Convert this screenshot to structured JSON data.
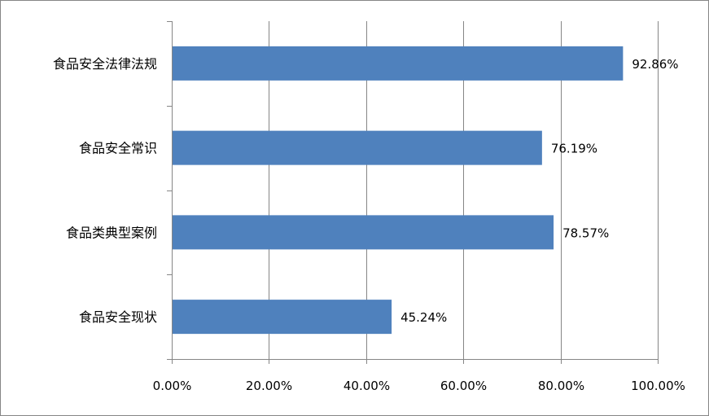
{
  "chart_data": {
    "type": "bar",
    "orientation": "horizontal",
    "categories": [
      "食品安全法律法规",
      "食品安全常识",
      "食品类典型案例",
      "食品安全现状"
    ],
    "values": [
      92.86,
      76.19,
      78.57,
      45.24
    ],
    "data_labels": [
      "92.86%",
      "76.19%",
      "78.57%",
      "45.24%"
    ],
    "xlim": [
      0,
      100
    ],
    "x_ticks": [
      0,
      20,
      40,
      60,
      80,
      100
    ],
    "x_tick_labels": [
      "0.00%",
      "20.00%",
      "40.00%",
      "60.00%",
      "80.00%",
      "100.00%"
    ],
    "title": "",
    "xlabel": "",
    "ylabel": "",
    "grid": "vertical",
    "legend": "none",
    "colors": {
      "bar": "#4F81BD",
      "grid": "#868686",
      "axis": "#868686",
      "frame": "#868686"
    }
  }
}
